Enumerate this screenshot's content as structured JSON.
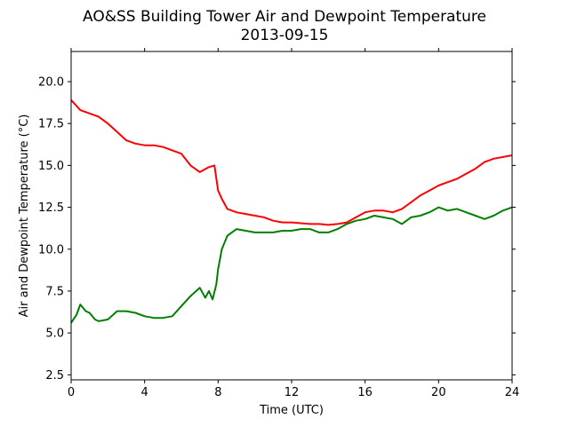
{
  "chart_data": {
    "type": "line",
    "title": "AO&SS Building Tower Air and Dewpoint Temperature",
    "subtitle": "2013-09-15",
    "xlabel": "Time (UTC)",
    "ylabel": "Air and Dewpoint Temperature (°C)",
    "xlim": [
      0,
      24
    ],
    "ylim": [
      2.2,
      21.8
    ],
    "xticks": [
      0,
      4,
      8,
      12,
      16,
      20,
      24
    ],
    "yticks": [
      2.5,
      5.0,
      7.5,
      10.0,
      12.5,
      15.0,
      17.5,
      20.0
    ],
    "xtick_labels": [
      "0",
      "4",
      "8",
      "12",
      "16",
      "20",
      "24"
    ],
    "ytick_labels": [
      "2.5",
      "5.0",
      "7.5",
      "10.0",
      "12.5",
      "15.0",
      "17.5",
      "20.0"
    ],
    "grid": false,
    "series": [
      {
        "color": "#ff0000",
        "x": [
          0,
          0.5,
          1,
          1.5,
          2,
          2.5,
          3,
          3.5,
          4,
          4.5,
          5,
          5.5,
          6,
          6.5,
          7,
          7.5,
          7.8,
          8,
          8.2,
          8.5,
          9,
          9.5,
          10,
          10.5,
          11,
          11.5,
          12,
          12.5,
          13,
          13.5,
          14,
          14.5,
          15,
          15.5,
          16,
          16.5,
          17,
          17.5,
          18,
          18.5,
          19,
          19.5,
          20,
          20.5,
          21,
          21.5,
          22,
          22.5,
          23,
          23.5,
          24
        ],
        "y": [
          18.9,
          18.3,
          18.1,
          17.9,
          17.5,
          17.0,
          16.5,
          16.3,
          16.2,
          16.2,
          16.1,
          15.9,
          15.7,
          15.0,
          14.6,
          14.9,
          15.0,
          13.5,
          13.0,
          12.4,
          12.2,
          12.1,
          12.0,
          11.9,
          11.7,
          11.6,
          11.6,
          11.55,
          11.5,
          11.5,
          11.45,
          11.5,
          11.6,
          11.9,
          12.2,
          12.3,
          12.3,
          12.2,
          12.4,
          12.8,
          13.2,
          13.5,
          13.8,
          14.0,
          14.2,
          14.5,
          14.8,
          15.2,
          15.4,
          15.5,
          15.6
        ]
      },
      {
        "color": "#008000",
        "x": [
          0,
          0.3,
          0.5,
          0.8,
          1,
          1.3,
          1.5,
          2,
          2.5,
          3,
          3.5,
          4,
          4.5,
          5,
          5.5,
          6,
          6.5,
          7,
          7.3,
          7.5,
          7.7,
          7.9,
          8,
          8.2,
          8.5,
          9,
          9.5,
          10,
          10.5,
          11,
          11.5,
          12,
          12.5,
          13,
          13.5,
          14,
          14.5,
          15,
          15.5,
          16,
          16.5,
          17,
          17.5,
          18,
          18.5,
          19,
          19.5,
          20,
          20.5,
          21,
          21.5,
          22,
          22.5,
          23,
          23.5,
          24
        ],
        "y": [
          5.6,
          6.1,
          6.7,
          6.3,
          6.2,
          5.8,
          5.7,
          5.8,
          6.3,
          6.3,
          6.2,
          6.0,
          5.9,
          5.9,
          6.0,
          6.6,
          7.2,
          7.7,
          7.1,
          7.5,
          7.0,
          7.9,
          8.8,
          10.0,
          10.8,
          11.2,
          11.1,
          11.0,
          11.0,
          11.0,
          11.1,
          11.1,
          11.2,
          11.2,
          11.0,
          11.0,
          11.2,
          11.5,
          11.7,
          11.8,
          12.0,
          11.9,
          11.8,
          11.5,
          11.9,
          12.0,
          12.2,
          12.5,
          12.3,
          12.4,
          12.2,
          12.0,
          11.8,
          12.0,
          12.3,
          12.5
        ]
      }
    ]
  }
}
